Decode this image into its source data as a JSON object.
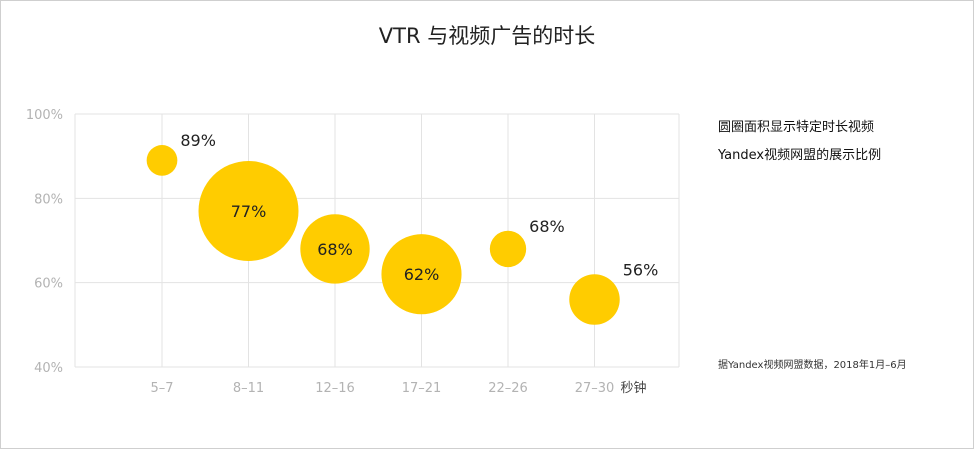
{
  "title": "VTR 与视频广告的时长",
  "legend": {
    "line1": "圆圈面积显示特定时长视频",
    "line2": "Yandex视频网盟的展示比例"
  },
  "source": "据Yandex视频网盟数据，2018年1月–6月",
  "x_unit": "秒钟",
  "chart_data": {
    "type": "scatter",
    "title": "VTR 与视频广告的时长",
    "xlabel": "秒钟",
    "ylabel": "",
    "categories": [
      "5–7",
      "8–11",
      "12–16",
      "17–21",
      "22–26",
      "27–30"
    ],
    "values": [
      89,
      77,
      68,
      62,
      68,
      56
    ],
    "value_labels": [
      "89%",
      "77%",
      "68%",
      "62%",
      "68%",
      "56%"
    ],
    "bubble_size_relative": [
      1,
      10.6,
      5.1,
      6.8,
      1.4,
      2.7
    ],
    "ylim": [
      40,
      100
    ],
    "yticks": [
      40,
      60,
      80,
      100
    ],
    "ytick_labels": [
      "40%",
      "60%",
      "80%",
      "100%"
    ],
    "grid": true,
    "bubble_color": "#FFCC00",
    "grid_color": "#e3e3e3"
  }
}
